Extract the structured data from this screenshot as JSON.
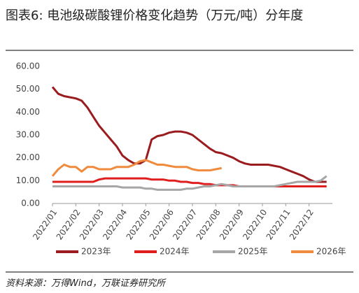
{
  "chart_data": {
    "type": "line",
    "title": "图表6:  电池级碳酸锂价格变化趋势（万元/吨）分年度",
    "source": "资料来源：万得Wind，万联证券研究所",
    "categories": [
      "2022/01",
      null,
      null,
      null,
      "2022/02",
      null,
      null,
      null,
      "2022/03",
      null,
      null,
      null,
      "2022/04",
      null,
      null,
      null,
      "2022/05",
      null,
      null,
      null,
      "2022/06",
      null,
      null,
      null,
      "2022/07",
      null,
      null,
      null,
      "2022/08",
      null,
      null,
      null,
      "2022/09",
      null,
      null,
      null,
      "2022/10",
      null,
      null,
      null,
      "2022/11",
      null,
      null,
      null,
      "2022/12",
      null,
      null,
      null
    ],
    "ylim": [
      0,
      60
    ],
    "yticks": [
      {
        "value": 0,
        "label": "0.00"
      },
      {
        "value": 10,
        "label": "10.00"
      },
      {
        "value": 20,
        "label": "20.00"
      },
      {
        "value": 30,
        "label": "30.00"
      },
      {
        "value": 40,
        "label": "40.00"
      },
      {
        "value": 50,
        "label": "50.00"
      },
      {
        "value": 60,
        "label": "60.00"
      }
    ],
    "series": [
      {
        "name": "2023年",
        "color": "#9b1c1f",
        "values": [
          51,
          48,
          47,
          46.5,
          46,
          45,
          42,
          38,
          34,
          31,
          28,
          25,
          21,
          19,
          17.5,
          17.5,
          19,
          28,
          29.5,
          30,
          31,
          31.5,
          31.5,
          31,
          30,
          28,
          26,
          24,
          22.5,
          22,
          21,
          20,
          18.5,
          17.5,
          17,
          17,
          17,
          17,
          16.5,
          16,
          15,
          14,
          13,
          12,
          10.5,
          9.5,
          9.5,
          9.5
        ]
      },
      {
        "name": "2024年",
        "color": "#e01e1e",
        "values": [
          9.5,
          9.5,
          9.5,
          9.5,
          9.5,
          9.5,
          9.5,
          9.5,
          10.5,
          11,
          11,
          11,
          11,
          11,
          11,
          11,
          11,
          10.5,
          10.5,
          10.5,
          10,
          10,
          9.5,
          9.5,
          9,
          9,
          8.5,
          8.5,
          8,
          8,
          8,
          8,
          7.5,
          7.5,
          7.5,
          7.5,
          7.5,
          7.5,
          7.5,
          7.5,
          7.5,
          7.5,
          7.5,
          7.5,
          7.5,
          7.5,
          7.5,
          7.5
        ]
      },
      {
        "name": "2025年",
        "color": "#a6a6a6",
        "values": [
          7.5,
          7.5,
          7.5,
          7.5,
          7.5,
          7.5,
          7.5,
          7.5,
          7.5,
          7.5,
          7.5,
          7.5,
          7,
          7,
          7,
          7,
          6.5,
          6.5,
          6,
          6,
          6,
          6,
          6,
          6.5,
          6.5,
          7,
          7.5,
          7.5,
          8,
          8.5,
          8,
          7.5,
          7.5,
          7.5,
          7.5,
          7.5,
          7.5,
          7.5,
          7.5,
          8,
          8.5,
          9,
          9.5,
          9.5,
          9.5,
          9.5,
          10,
          12
        ]
      },
      {
        "name": "2026年",
        "color": "#f08a3c",
        "values": [
          12,
          15,
          17,
          16,
          16,
          14,
          16,
          16,
          15,
          15,
          15,
          16,
          16,
          16,
          17,
          18.5,
          19,
          18,
          17,
          17,
          16.5,
          16,
          16,
          16,
          15,
          14.5,
          14.5,
          14.5,
          15,
          15.5,
          null,
          null,
          null,
          null,
          null,
          null,
          null,
          null,
          null,
          null,
          null,
          null,
          null,
          null,
          null,
          null,
          null,
          null
        ]
      }
    ]
  }
}
